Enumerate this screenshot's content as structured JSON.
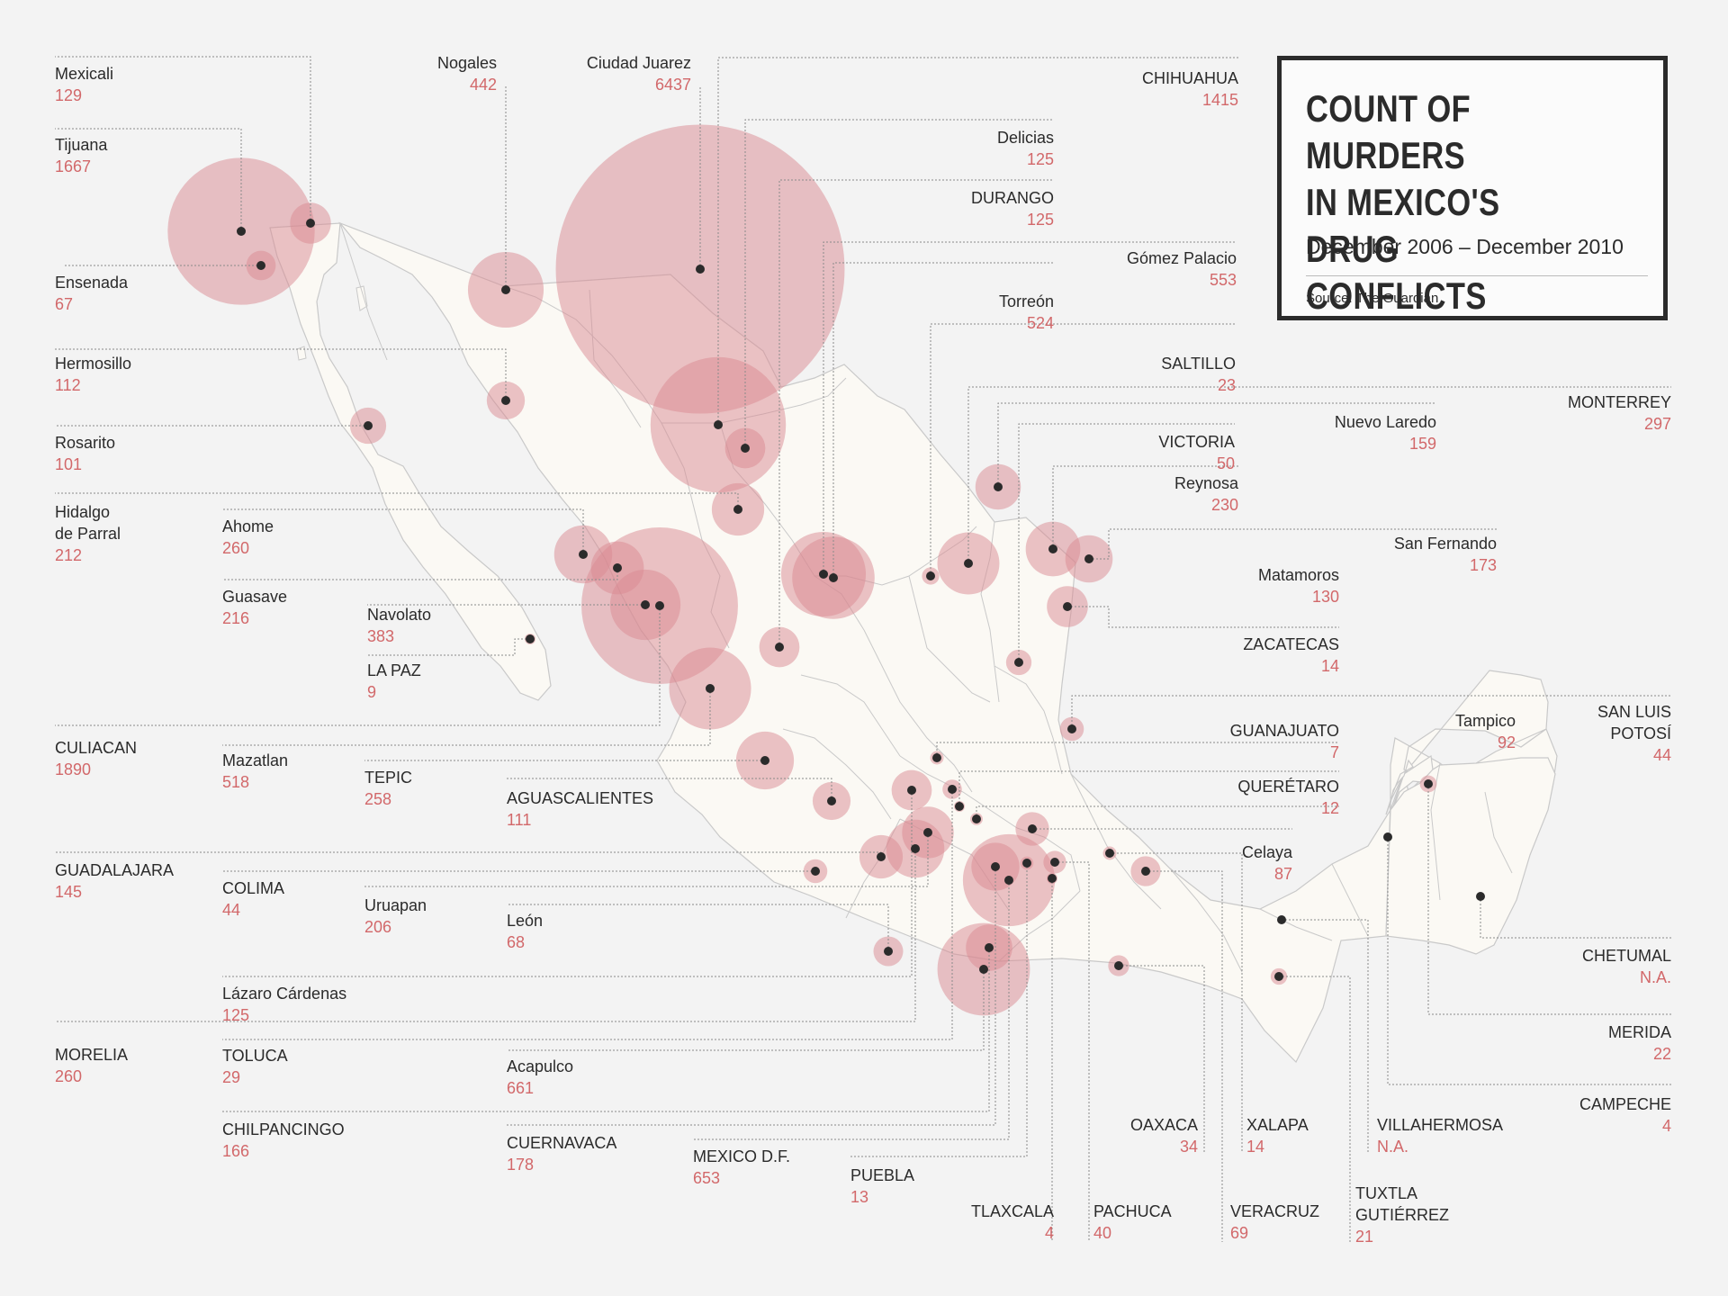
{
  "title": "COUNT OF MURDERS\nIN MEXICO'S DRUG\nCONFLICTS",
  "subtitle": "December 2006 – December 2010",
  "source": "Source: The Guardian",
  "colors": {
    "bubble": "#d98a92",
    "dot": "#2b2b2b",
    "value_text": "#d2686a",
    "land": "#fbf9f4",
    "background": "#f3f3f3"
  },
  "chart_data": {
    "type": "bubble-map",
    "cities": [
      {
        "name": "Mexicali",
        "value": "129"
      },
      {
        "name": "Tijuana",
        "value": "1667"
      },
      {
        "name": "Ensenada",
        "value": "67"
      },
      {
        "name": "Hermosillo",
        "value": "112"
      },
      {
        "name": "Rosarito",
        "value": "101"
      },
      {
        "name": "Hidalgo\nde Parral",
        "value": "212"
      },
      {
        "name": "Ahome",
        "value": "260"
      },
      {
        "name": "Guasave",
        "value": "216"
      },
      {
        "name": "Navolato",
        "value": "383"
      },
      {
        "name": "LA PAZ",
        "value": "9"
      },
      {
        "name": "CULIACAN",
        "value": "1890"
      },
      {
        "name": "Mazatlan",
        "value": "518"
      },
      {
        "name": "TEPIC",
        "value": "258"
      },
      {
        "name": "AGUASCALIENTES",
        "value": "111"
      },
      {
        "name": "GUADALAJARA",
        "value": "145"
      },
      {
        "name": "COLIMA",
        "value": "44"
      },
      {
        "name": "Uruapan",
        "value": "206"
      },
      {
        "name": "León",
        "value": "68"
      },
      {
        "name": "Lázaro Cárdenas",
        "value": "125"
      },
      {
        "name": "MORELIA",
        "value": "260"
      },
      {
        "name": "TOLUCA",
        "value": "29"
      },
      {
        "name": "Acapulco",
        "value": "661"
      },
      {
        "name": "CHILPANCINGO",
        "value": "166"
      },
      {
        "name": "CUERNAVACA",
        "value": "178"
      },
      {
        "name": "MEXICO D.F.",
        "value": "653"
      },
      {
        "name": "PUEBLA",
        "value": "13"
      },
      {
        "name": "TLAXCALA",
        "value": "4"
      },
      {
        "name": "PACHUCA",
        "value": "40"
      },
      {
        "name": "VERACRUZ",
        "value": "69"
      },
      {
        "name": "OAXACA",
        "value": "34"
      },
      {
        "name": "XALAPA",
        "value": "14"
      },
      {
        "name": "TUXTLA\nGUTIÉRREZ",
        "value": "21"
      },
      {
        "name": "VILLAHERMOSA",
        "value": "N.A."
      },
      {
        "name": "CAMPECHE",
        "value": "4"
      },
      {
        "name": "MERIDA",
        "value": "22"
      },
      {
        "name": "CHETUMAL",
        "value": "N.A."
      },
      {
        "name": "SAN LUIS\nPOTOSÍ",
        "value": "44"
      },
      {
        "name": "Tampico",
        "value": "92"
      },
      {
        "name": "Celaya",
        "value": "87"
      },
      {
        "name": "QUERÉTARO",
        "value": "12"
      },
      {
        "name": "GUANAJUATO",
        "value": "7"
      },
      {
        "name": "ZACATECAS",
        "value": "14"
      },
      {
        "name": "San Fernando",
        "value": "173"
      },
      {
        "name": "Matamoros",
        "value": "130"
      },
      {
        "name": "Reynosa",
        "value": "230"
      },
      {
        "name": "Nuevo Laredo",
        "value": "159"
      },
      {
        "name": "MONTERREY",
        "value": "297"
      },
      {
        "name": "VICTORIA",
        "value": "50"
      },
      {
        "name": "SALTILLO",
        "value": "23"
      },
      {
        "name": "Torreón",
        "value": "524"
      },
      {
        "name": "Gómez Palacio",
        "value": "553"
      },
      {
        "name": "DURANGO",
        "value": "125"
      },
      {
        "name": "Delicias",
        "value": "125"
      },
      {
        "name": "CHIHUAHUA",
        "value": "1415"
      },
      {
        "name": "Ciudad Juarez",
        "value": "6437"
      },
      {
        "name": "Nogales",
        "value": "442"
      }
    ]
  }
}
